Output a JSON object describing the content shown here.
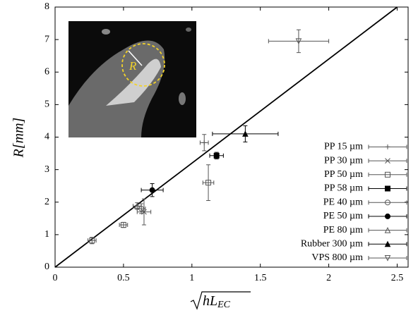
{
  "chart_data": {
    "type": "scatter",
    "xlabel": {
      "base": "hL",
      "sub": "EC"
    },
    "ylabel": "R[mm]",
    "xlim": [
      0,
      2.58
    ],
    "ylim": [
      0,
      8
    ],
    "xticks": [
      0,
      0.5,
      1,
      1.5,
      2,
      2.5
    ],
    "yticks": [
      0,
      1,
      2,
      3,
      4,
      5,
      6,
      7,
      8
    ],
    "legend": "lower right",
    "fit": {
      "color": "#000000",
      "x": [
        0,
        2.5
      ],
      "values": [
        0,
        8
      ]
    },
    "series": [
      {
        "name": "PP 15 µm",
        "marker": "plus",
        "color": "#555555",
        "x": [
          1.09
        ],
        "values": [
          3.83
        ],
        "xerr": [
          0.03
        ],
        "yerr": [
          0.25
        ]
      },
      {
        "name": "PP 30 µm",
        "marker": "cross",
        "color": "#555555",
        "x": [
          0.65
        ],
        "values": [
          1.7
        ],
        "xerr": [
          0.05
        ],
        "yerr": [
          0.4
        ]
      },
      {
        "name": "PP 50 µm",
        "marker": "square-open",
        "color": "#555555",
        "x": [
          0.27,
          0.5,
          1.12
        ],
        "values": [
          0.82,
          1.3,
          2.6
        ],
        "xerr": [
          0.03,
          0.03,
          0.04
        ],
        "yerr": [
          0.1,
          0.08,
          0.55
        ]
      },
      {
        "name": "PP 58 µm",
        "marker": "square-filled",
        "color": "#000000",
        "x": [
          1.18
        ],
        "values": [
          3.43
        ],
        "xerr": [
          0.05
        ],
        "yerr": [
          0.1
        ]
      },
      {
        "name": "PE 40 µm",
        "marker": "circle-open",
        "color": "#555555",
        "x": [
          0.63
        ],
        "values": [
          1.8
        ],
        "xerr": [
          0.03
        ],
        "yerr": [
          0.15
        ]
      },
      {
        "name": "PE 50 µm",
        "marker": "circle-filled",
        "color": "#000000",
        "x": [
          0.71
        ],
        "values": [
          2.37
        ],
        "xerr": [
          0.08
        ],
        "yerr": [
          0.2
        ]
      },
      {
        "name": "PE 80 µm",
        "marker": "triangle-open",
        "color": "#555555",
        "x": [
          0.6
        ],
        "values": [
          1.88
        ],
        "xerr": [
          0.03
        ],
        "yerr": [
          0.1
        ]
      },
      {
        "name": "Rubber 300 µm",
        "marker": "triangle-filled",
        "color": "#000000",
        "x": [
          1.39
        ],
        "values": [
          4.1
        ],
        "xerr": [
          0.24
        ],
        "yerr": [
          0.25
        ]
      },
      {
        "name": "VPS 800 µm",
        "marker": "triangle-down-open",
        "color": "#555555",
        "x": [
          1.78
        ],
        "values": [
          6.95
        ],
        "xerr": [
          0.22
        ],
        "yerr": [
          0.35
        ]
      }
    ],
    "inset": {
      "label": "R"
    }
  }
}
